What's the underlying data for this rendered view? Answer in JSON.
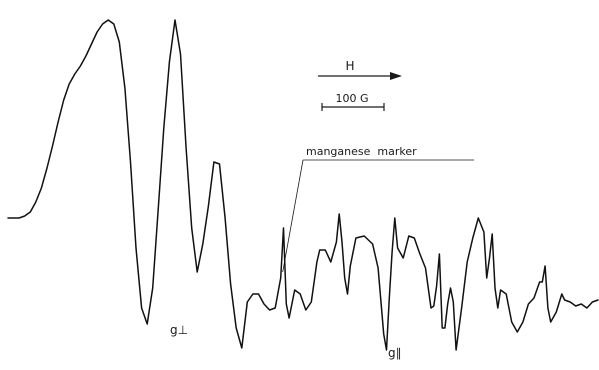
{
  "chart_data": {
    "type": "line",
    "title": "",
    "xlabel": "",
    "ylabel": "",
    "field_direction_label": "H",
    "scale_bar_label": "100 G",
    "annotations": {
      "marker": "manganese  marker",
      "g_perp": "g⊥",
      "g_par": "g∥"
    },
    "series": [
      {
        "values": [
          [
            0,
            0.0
          ],
          [
            2,
            0.0
          ],
          [
            4,
            0.0
          ],
          [
            6,
            0.01
          ],
          [
            8,
            0.03
          ],
          [
            10,
            0.08
          ],
          [
            12,
            0.15
          ],
          [
            14,
            0.25
          ],
          [
            16,
            0.36
          ],
          [
            18,
            0.48
          ],
          [
            20,
            0.59
          ],
          [
            22,
            0.67
          ],
          [
            24,
            0.72
          ],
          [
            26,
            0.76
          ],
          [
            28,
            0.81
          ],
          [
            30,
            0.87
          ],
          [
            32,
            0.93
          ],
          [
            34,
            0.97
          ],
          [
            36,
            0.99
          ],
          [
            38,
            0.97
          ],
          [
            40,
            0.88
          ],
          [
            42,
            0.65
          ],
          [
            44,
            0.28
          ],
          [
            46,
            -0.15
          ],
          [
            48,
            -0.45
          ],
          [
            50,
            -0.53
          ],
          [
            52,
            -0.35
          ],
          [
            54,
            0.05
          ],
          [
            56,
            0.45
          ],
          [
            58,
            0.78
          ],
          [
            60,
            0.99
          ],
          [
            62,
            0.82
          ],
          [
            64,
            0.35
          ],
          [
            66,
            -0.05
          ],
          [
            68,
            -0.27
          ],
          [
            70,
            -0.13
          ],
          [
            72,
            0.06
          ],
          [
            74,
            0.28
          ],
          [
            76,
            0.27
          ],
          [
            78,
            0.0
          ],
          [
            80,
            -0.33
          ],
          [
            82,
            -0.55
          ],
          [
            84,
            -0.65
          ],
          [
            86,
            -0.42
          ],
          [
            88,
            -0.38
          ],
          [
            90,
            -0.38
          ],
          [
            92,
            -0.43
          ],
          [
            94,
            -0.46
          ],
          [
            96,
            -0.45
          ],
          [
            98,
            -0.3
          ],
          [
            99,
            -0.05
          ],
          [
            100,
            -0.43
          ],
          [
            101,
            -0.5
          ],
          [
            103,
            -0.36
          ],
          [
            105,
            -0.38
          ],
          [
            107,
            -0.46
          ],
          [
            109,
            -0.42
          ],
          [
            111,
            -0.22
          ],
          [
            112,
            -0.16
          ],
          [
            114,
            -0.16
          ],
          [
            116,
            -0.22
          ],
          [
            118,
            -0.12
          ],
          [
            119,
            0.02
          ],
          [
            120,
            -0.12
          ],
          [
            121,
            -0.3
          ],
          [
            122,
            -0.38
          ],
          [
            123,
            -0.24
          ],
          [
            125,
            -0.1
          ],
          [
            128,
            -0.09
          ],
          [
            131,
            -0.13
          ],
          [
            133,
            -0.25
          ],
          [
            135,
            -0.58
          ],
          [
            136,
            -0.66
          ],
          [
            137,
            -0.4
          ],
          [
            138,
            -0.17
          ],
          [
            139,
            0.0
          ],
          [
            140,
            -0.15
          ],
          [
            142,
            -0.2
          ],
          [
            144,
            -0.09
          ],
          [
            146,
            -0.1
          ],
          [
            148,
            -0.18
          ],
          [
            150,
            -0.25
          ],
          [
            152,
            -0.45
          ],
          [
            153,
            -0.44
          ],
          [
            154,
            -0.34
          ],
          [
            155,
            -0.18
          ],
          [
            156,
            -0.55
          ],
          [
            157,
            -0.55
          ],
          [
            158,
            -0.43
          ],
          [
            159,
            -0.35
          ],
          [
            160,
            -0.42
          ],
          [
            161,
            -0.66
          ],
          [
            163,
            -0.45
          ],
          [
            165,
            -0.22
          ],
          [
            167,
            -0.1
          ],
          [
            169,
            -0.0
          ],
          [
            171,
            -0.07
          ],
          [
            172,
            -0.3
          ],
          [
            173,
            -0.2
          ],
          [
            174,
            -0.08
          ],
          [
            175,
            -0.35
          ],
          [
            176,
            -0.45
          ],
          [
            177,
            -0.36
          ],
          [
            179,
            -0.38
          ],
          [
            181,
            -0.52
          ],
          [
            183,
            -0.57
          ],
          [
            185,
            -0.52
          ],
          [
            187,
            -0.43
          ],
          [
            189,
            -0.4
          ],
          [
            191,
            -0.32
          ],
          [
            192,
            -0.32
          ],
          [
            193,
            -0.24
          ],
          [
            194,
            -0.45
          ],
          [
            195,
            -0.52
          ],
          [
            197,
            -0.47
          ],
          [
            199,
            -0.38
          ],
          [
            200,
            -0.41
          ],
          [
            202,
            -0.42
          ],
          [
            204,
            -0.44
          ],
          [
            206,
            -0.43
          ],
          [
            208,
            -0.45
          ],
          [
            210,
            -0.42
          ],
          [
            212,
            -0.41
          ]
        ]
      }
    ],
    "annotation_anchor_x": 98,
    "xlim": [
      0,
      212
    ],
    "ylim": [
      -0.7,
      1.03
    ],
    "grid": false,
    "legend": "none"
  }
}
